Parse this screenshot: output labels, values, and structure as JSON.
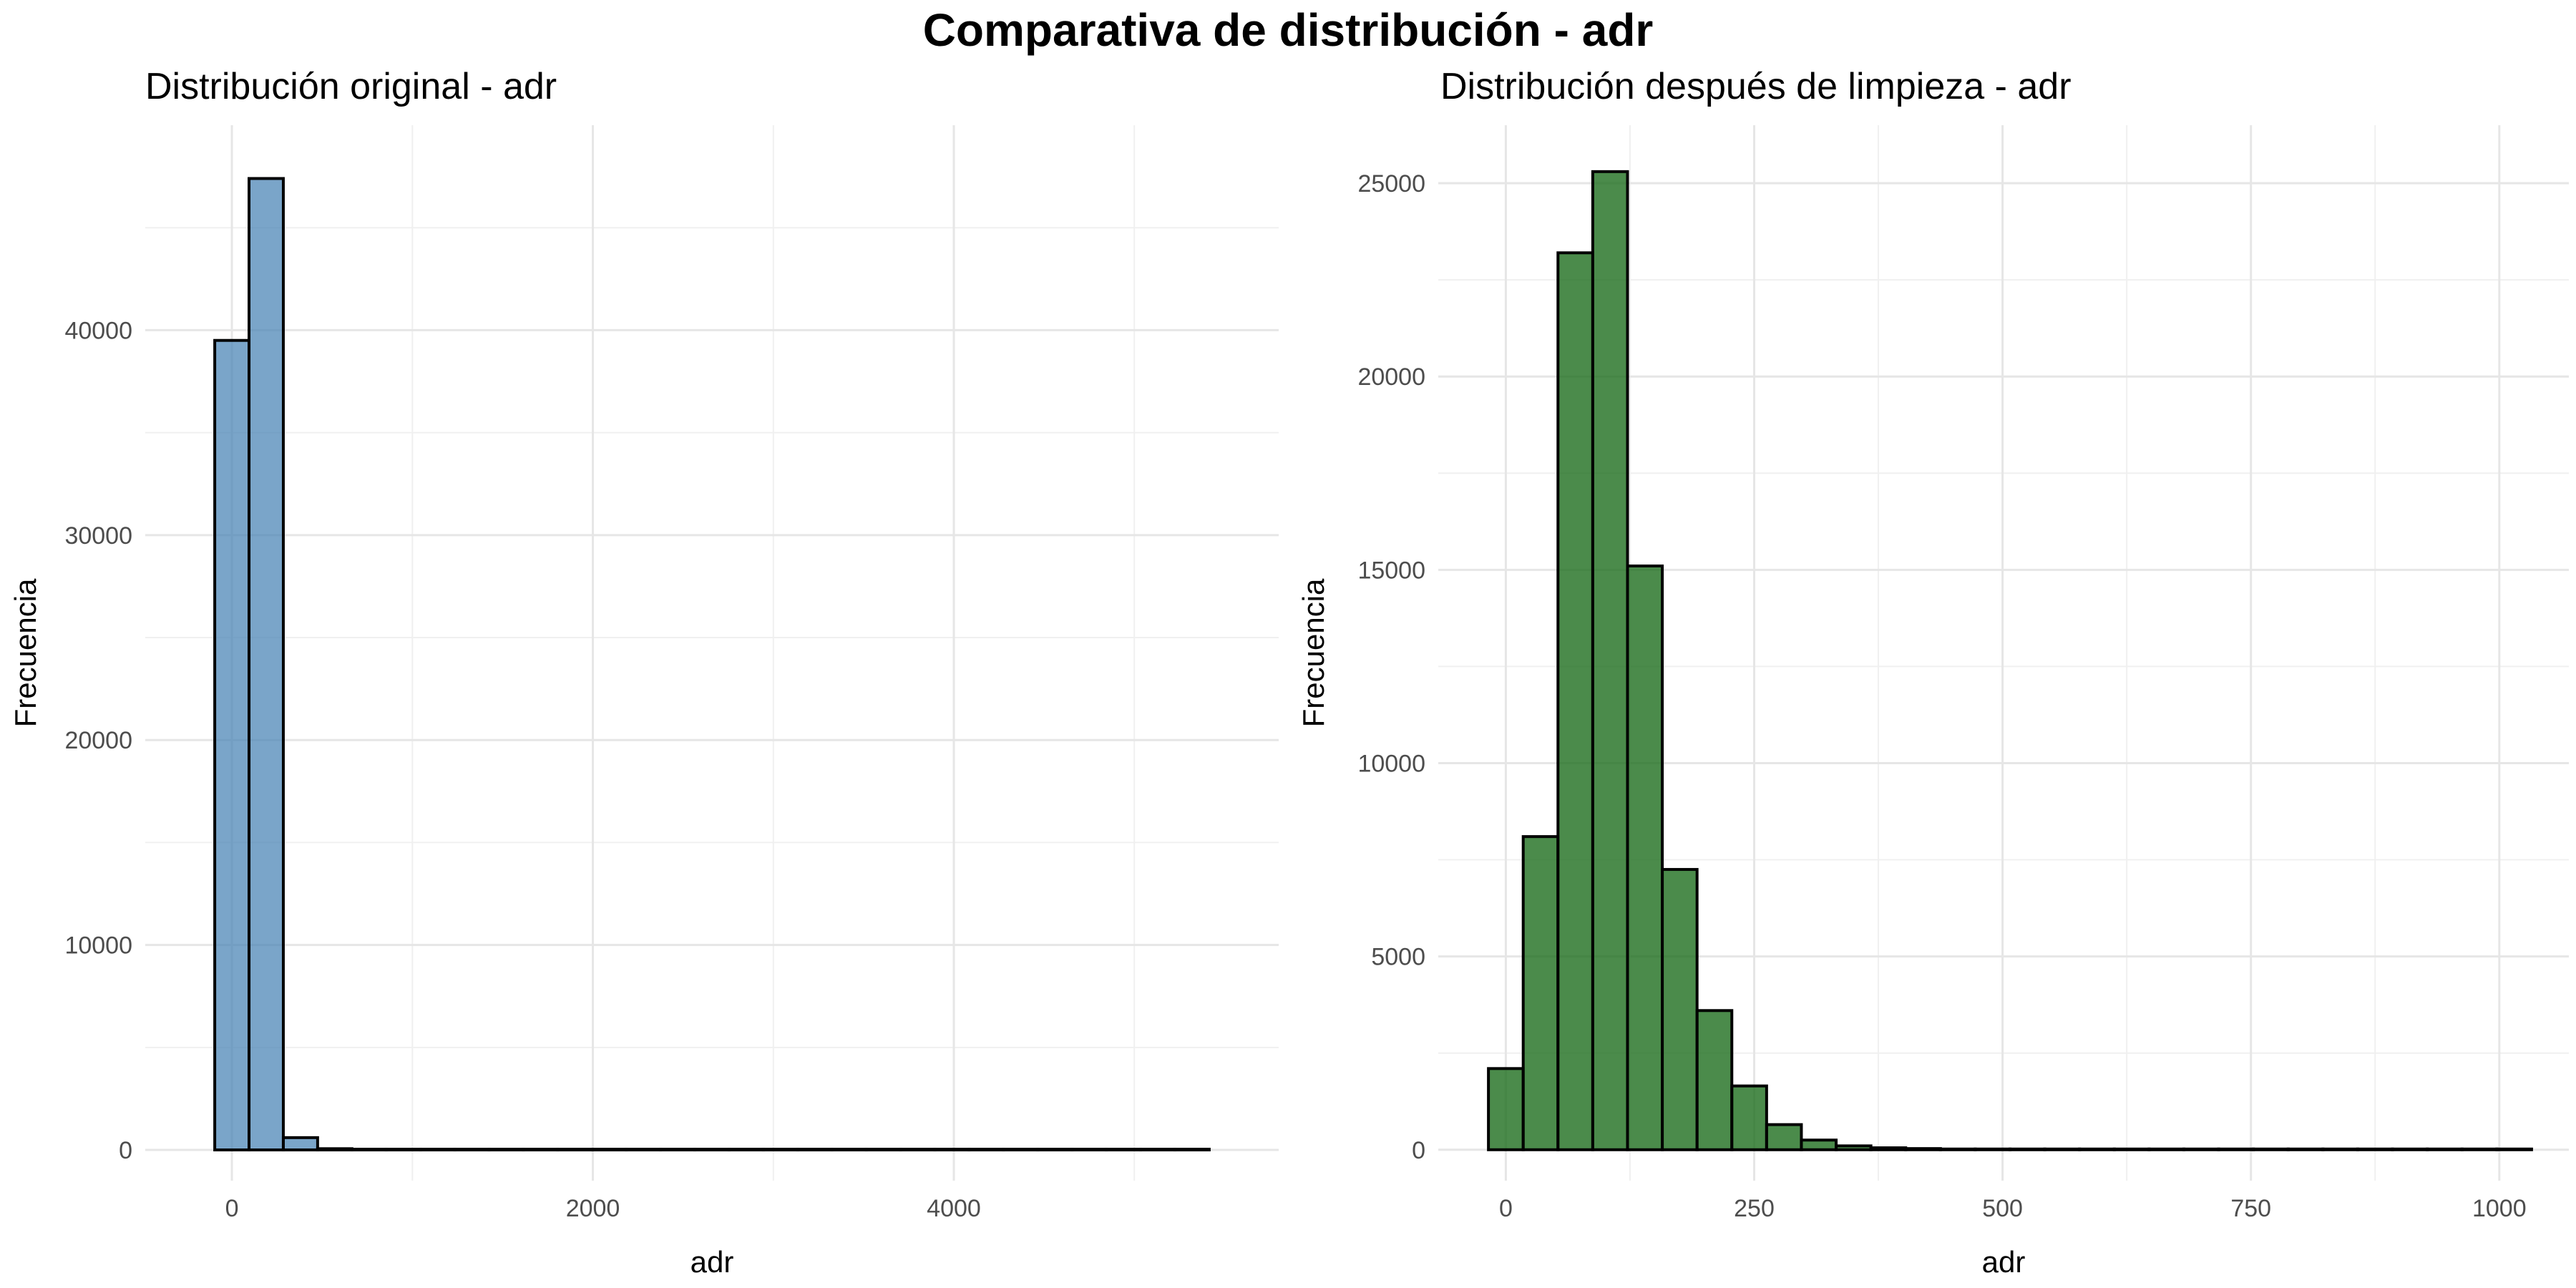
{
  "title": "Comparativa de distribución - adr",
  "chart_data": [
    {
      "type": "bar",
      "subtype": "histogram",
      "title": "Distribución original - adr",
      "xlabel": "adr",
      "ylabel": "Frecuencia",
      "fill_color": "#4682B4",
      "edge_color": "#000000",
      "bin_width": 190,
      "bin_centers": [
        0,
        190,
        380,
        570,
        760,
        950,
        1140,
        1330,
        1520,
        1710,
        1900,
        2090,
        2280,
        2470,
        2660,
        2850,
        3040,
        3230,
        3420,
        3610,
        3800,
        3990,
        4180,
        4370,
        4560,
        4750,
        4940,
        5130,
        5320
      ],
      "values": [
        39500,
        47400,
        600,
        60,
        10,
        5,
        3,
        2,
        1,
        1,
        1,
        1,
        0,
        0,
        0,
        0,
        0,
        0,
        0,
        0,
        0,
        0,
        0,
        0,
        0,
        0,
        0,
        0,
        1
      ],
      "xlim": [
        -480,
        5800
      ],
      "ylim": [
        -1500,
        50000
      ],
      "x_ticks": [
        0,
        2000,
        4000
      ],
      "x_tick_labels": [
        "0",
        "2000",
        "4000"
      ],
      "y_ticks": [
        0,
        10000,
        20000,
        30000,
        40000
      ],
      "y_tick_labels": [
        "0",
        "10000",
        "20000",
        "30000",
        "40000"
      ],
      "grid": true
    },
    {
      "type": "bar",
      "subtype": "histogram",
      "title": "Distribución después de limpieza - adr",
      "xlabel": "adr",
      "ylabel": "Frecuencia",
      "fill_color": "#1E6E1E",
      "edge_color": "#000000",
      "bin_width": 35,
      "bin_centers": [
        0,
        35,
        70,
        105,
        140,
        175,
        210,
        245,
        280,
        315,
        350,
        385,
        420,
        455,
        490,
        525,
        560,
        595,
        630,
        665,
        700,
        735,
        770,
        805,
        840,
        875,
        910,
        945,
        980,
        1015
      ],
      "values": [
        2100,
        8100,
        23200,
        25300,
        15100,
        7250,
        3600,
        1650,
        650,
        250,
        100,
        50,
        30,
        15,
        10,
        5,
        3,
        2,
        1,
        1,
        1,
        1,
        0,
        0,
        0,
        0,
        0,
        0,
        0,
        1
      ],
      "xlim": [
        -68,
        1070
      ],
      "ylim": [
        -800,
        26500
      ],
      "x_ticks": [
        0,
        250,
        500,
        750,
        1000
      ],
      "x_tick_labels": [
        "0",
        "250",
        "500",
        "750",
        "1000"
      ],
      "y_ticks": [
        0,
        5000,
        10000,
        15000,
        20000,
        25000
      ],
      "y_tick_labels": [
        "0",
        "5000",
        "10000",
        "15000",
        "20000",
        "25000"
      ],
      "grid": true
    }
  ]
}
